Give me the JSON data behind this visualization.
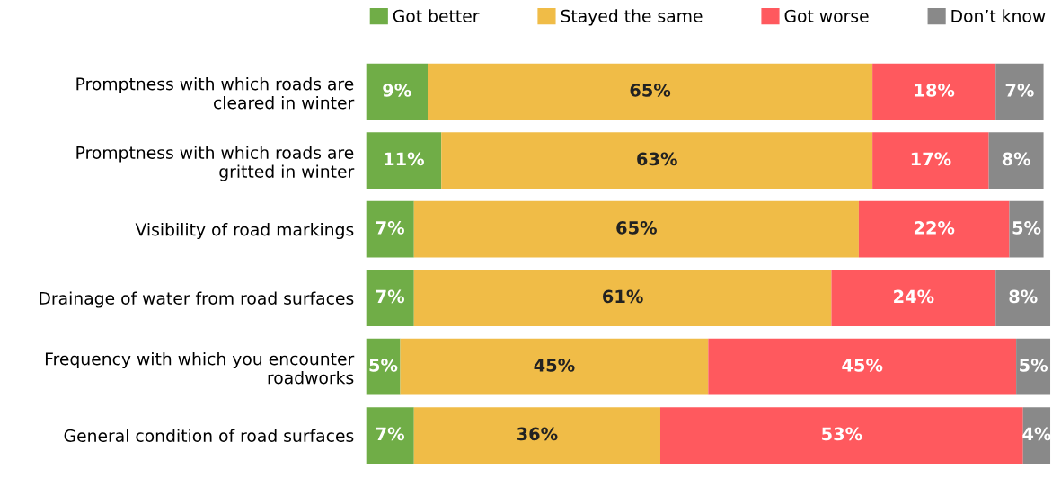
{
  "chart_data": {
    "type": "bar",
    "orientation": "horizontal",
    "stacked": true,
    "data_labels": true,
    "legend": "top",
    "grid": false,
    "tick_labels": "y",
    "xlim": [
      0,
      100
    ],
    "categories": [
      "Promptness with which roads are\ncleared in winter",
      "Promptness with which roads are\ngritted in winter",
      "Visibility of road markings",
      "Drainage of water from road surfaces",
      "Frequency with which you encounter\nroadworks",
      "General condition of road surfaces"
    ],
    "series": [
      {
        "name": "Got better",
        "color": "#70ad47",
        "values": [
          9,
          11,
          7,
          7,
          5,
          7
        ],
        "value_labels": [
          "9%",
          "11%",
          "7%",
          "7%",
          "5%",
          "7%"
        ]
      },
      {
        "name": "Stayed the same",
        "color": "#f0bc47",
        "values": [
          65,
          63,
          65,
          61,
          45,
          36
        ],
        "value_labels": [
          "65%",
          "63%",
          "65%",
          "61%",
          "45%",
          "36%"
        ]
      },
      {
        "name": "Got worse",
        "color": "#ff595e",
        "values": [
          18,
          17,
          22,
          24,
          45,
          53
        ],
        "value_labels": [
          "18%",
          "17%",
          "22%",
          "24%",
          "45%",
          "53%"
        ]
      },
      {
        "name": "Don’t know",
        "color": "#898989",
        "values": [
          7,
          8,
          5,
          8,
          5,
          4
        ],
        "value_labels": [
          "7%",
          "8%",
          "5%",
          "8%",
          "5%",
          "4%"
        ]
      }
    ]
  }
}
